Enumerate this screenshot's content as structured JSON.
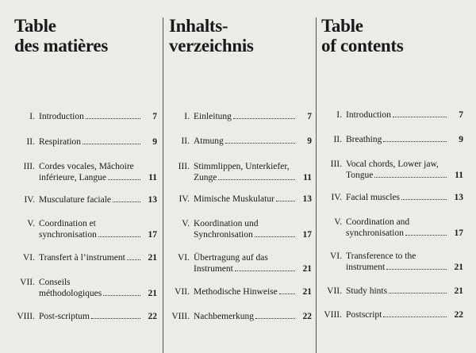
{
  "columns": [
    {
      "title": [
        "Table",
        "des matières"
      ],
      "entries": [
        {
          "num": "I.",
          "lines": [
            "Introduction"
          ],
          "page": "7"
        },
        {
          "num": "II.",
          "lines": [
            "Respiration"
          ],
          "page": "9"
        },
        {
          "num": "III.",
          "lines": [
            "Cordes vocales, Mâchoire",
            "inférieure, Langue"
          ],
          "page": "11"
        },
        {
          "num": "IV.",
          "lines": [
            "Musculature faciale"
          ],
          "page": "13"
        },
        {
          "num": "V.",
          "lines": [
            "Coordination et",
            "synchronisation"
          ],
          "page": "17"
        },
        {
          "num": "VI.",
          "lines": [
            "Transfert à l’instrument"
          ],
          "page": "21"
        },
        {
          "num": "VII.",
          "lines": [
            "Conseils",
            "méthodologiques"
          ],
          "page": "21"
        },
        {
          "num": "VIII.",
          "lines": [
            "Post-scriptum"
          ],
          "page": "22"
        }
      ]
    },
    {
      "title": [
        "Inhalts-",
        "verzeichnis"
      ],
      "entries": [
        {
          "num": "I.",
          "lines": [
            "Einleitung"
          ],
          "page": "7"
        },
        {
          "num": "II.",
          "lines": [
            "Atmung"
          ],
          "page": "9"
        },
        {
          "num": "III.",
          "lines": [
            "Stimmlippen, Unterkiefer,",
            "Zunge"
          ],
          "page": "11"
        },
        {
          "num": "IV.",
          "lines": [
            "Mimische Muskulatur"
          ],
          "page": "13"
        },
        {
          "num": "V.",
          "lines": [
            "Koordination und",
            "Synchronisation"
          ],
          "page": "17"
        },
        {
          "num": "VI.",
          "lines": [
            "Übertragung auf das",
            "Instrument"
          ],
          "page": "21"
        },
        {
          "num": "VII.",
          "lines": [
            "Methodische Hinweise"
          ],
          "page": "21"
        },
        {
          "num": "VIII.",
          "lines": [
            "Nachbemerkung"
          ],
          "page": "22"
        }
      ]
    },
    {
      "title": [
        "Table",
        "of contents"
      ],
      "entries": [
        {
          "num": "I.",
          "lines": [
            "Introduction"
          ],
          "page": "7"
        },
        {
          "num": "II.",
          "lines": [
            "Breathing"
          ],
          "page": "9"
        },
        {
          "num": "III.",
          "lines": [
            "Vocal chords, Lower jaw,",
            "Tongue"
          ],
          "page": "11"
        },
        {
          "num": "IV.",
          "lines": [
            "Facial muscles"
          ],
          "page": "13"
        },
        {
          "num": "V.",
          "lines": [
            "Coordination and",
            "synchronisation"
          ],
          "page": "17"
        },
        {
          "num": "VI.",
          "lines": [
            "Transference to the",
            "instrument"
          ],
          "page": "21"
        },
        {
          "num": "VII.",
          "lines": [
            "Study hints"
          ],
          "page": "21"
        },
        {
          "num": "VIII.",
          "lines": [
            "Postscript"
          ],
          "page": "22"
        }
      ]
    }
  ]
}
